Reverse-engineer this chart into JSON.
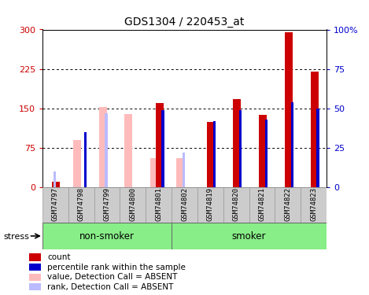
{
  "title": "GDS1304 / 220453_at",
  "samples": [
    "GSM74797",
    "GSM74798",
    "GSM74799",
    "GSM74800",
    "GSM74801",
    "GSM74802",
    "GSM74819",
    "GSM74820",
    "GSM74821",
    "GSM74822",
    "GSM74823"
  ],
  "non_smoker_count": 5,
  "count_values": [
    10,
    0,
    0,
    0,
    160,
    0,
    125,
    168,
    138,
    295,
    220
  ],
  "rank_values": [
    0,
    35,
    0,
    0,
    49,
    0,
    42,
    49,
    43,
    54,
    50
  ],
  "absent_value_values": [
    0,
    90,
    153,
    140,
    55,
    55,
    0,
    0,
    0,
    0,
    0
  ],
  "absent_rank_values": [
    10,
    0,
    47,
    0,
    0,
    22,
    0,
    0,
    0,
    0,
    0
  ],
  "left_ylim": [
    0,
    300
  ],
  "right_ylim": [
    0,
    100
  ],
  "left_yticks": [
    0,
    75,
    150,
    225,
    300
  ],
  "right_yticks": [
    0,
    25,
    50,
    75,
    100
  ],
  "left_tick_labels": [
    "0",
    "75",
    "150",
    "225",
    "300"
  ],
  "right_tick_labels": [
    "0",
    "25",
    "50",
    "75",
    "100%"
  ],
  "color_count": "#cc0000",
  "color_rank": "#0000cc",
  "color_absent_value": "#ffbbbb",
  "color_absent_rank": "#bbbbff",
  "bar_width": 0.55,
  "group_bg_color": "#88ee88",
  "xlabel_bg_color": "#cccccc",
  "stress_label": "stress",
  "non_smoker_label": "non-smoker",
  "smoker_label": "smoker",
  "legend_items": [
    {
      "color": "#cc0000",
      "label": "count"
    },
    {
      "color": "#0000cc",
      "label": "percentile rank within the sample"
    },
    {
      "color": "#ffbbbb",
      "label": "value, Detection Call = ABSENT"
    },
    {
      "color": "#bbbbff",
      "label": "rank, Detection Call = ABSENT"
    }
  ]
}
